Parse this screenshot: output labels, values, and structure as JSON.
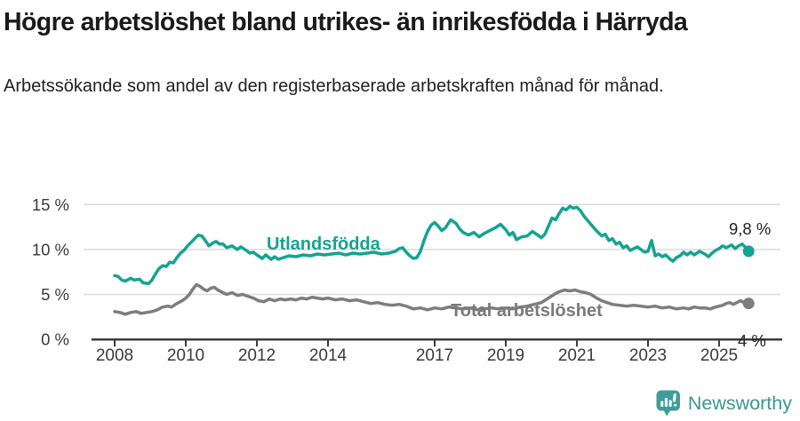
{
  "header": {
    "title": "Högre arbetslöshet bland utrikes- än inrikesfödda i Härryda",
    "subtitle": "Arbetssökande som andel av den registerbaserade arbetskraften månad för månad."
  },
  "footer": {
    "brand": "Newsworthy"
  },
  "chart_data": {
    "type": "line",
    "title": "Högre arbetslöshet bland utrikes- än inrikesfödda i Härryda",
    "subtitle": "Arbetssökande som andel av den registerbaserade arbetskraften månad för månad.",
    "xlabel": "",
    "ylabel": "",
    "grid": "horizontal",
    "legend_position": "inline-labels",
    "ylim": [
      0,
      16
    ],
    "xlim": [
      2007.5,
      2026.5
    ],
    "y_tick_values": [
      0,
      5,
      10,
      15
    ],
    "y_tick_labels": [
      "0 %",
      "5 %",
      "10 %",
      "15 %"
    ],
    "x_tick_values": [
      2008,
      2010,
      2012,
      2014,
      2017,
      2019,
      2021,
      2023,
      2025
    ],
    "x_tick_labels": [
      "2008",
      "2010",
      "2012",
      "2014",
      "2017",
      "2019",
      "2021",
      "2023",
      "2025"
    ],
    "colors": {
      "utlandsfodda": "#14a392",
      "total": "#7d7d7d",
      "grid": "#dcdcdc",
      "axis": "#3d3d3d"
    },
    "series": [
      {
        "name": "Utlandsfödda",
        "color": "#14a392",
        "end_label": "9,8 %",
        "end_value": 9.8,
        "points": [
          [
            2008.0,
            7.1
          ],
          [
            2008.1,
            7.0
          ],
          [
            2008.2,
            6.6
          ],
          [
            2008.3,
            6.5
          ],
          [
            2008.45,
            6.8
          ],
          [
            2008.55,
            6.6
          ],
          [
            2008.7,
            6.7
          ],
          [
            2008.8,
            6.3
          ],
          [
            2008.95,
            6.2
          ],
          [
            2009.05,
            6.6
          ],
          [
            2009.15,
            7.3
          ],
          [
            2009.25,
            7.9
          ],
          [
            2009.35,
            8.2
          ],
          [
            2009.45,
            8.1
          ],
          [
            2009.55,
            8.6
          ],
          [
            2009.65,
            8.5
          ],
          [
            2009.75,
            9.1
          ],
          [
            2009.85,
            9.6
          ],
          [
            2009.95,
            9.9
          ],
          [
            2010.05,
            10.4
          ],
          [
            2010.15,
            10.8
          ],
          [
            2010.25,
            11.2
          ],
          [
            2010.35,
            11.6
          ],
          [
            2010.45,
            11.5
          ],
          [
            2010.55,
            11.0
          ],
          [
            2010.65,
            10.4
          ],
          [
            2010.75,
            10.7
          ],
          [
            2010.85,
            10.9
          ],
          [
            2010.95,
            10.6
          ],
          [
            2011.05,
            10.6
          ],
          [
            2011.15,
            10.2
          ],
          [
            2011.3,
            10.4
          ],
          [
            2011.45,
            10.0
          ],
          [
            2011.55,
            10.3
          ],
          [
            2011.7,
            9.9
          ],
          [
            2011.8,
            9.6
          ],
          [
            2011.9,
            9.7
          ],
          [
            2012.0,
            9.4
          ],
          [
            2012.15,
            9.0
          ],
          [
            2012.25,
            9.4
          ],
          [
            2012.4,
            8.9
          ],
          [
            2012.5,
            9.2
          ],
          [
            2012.6,
            8.9
          ],
          [
            2012.75,
            9.1
          ],
          [
            2012.9,
            9.3
          ],
          [
            2013.1,
            9.2
          ],
          [
            2013.3,
            9.4
          ],
          [
            2013.5,
            9.3
          ],
          [
            2013.7,
            9.5
          ],
          [
            2013.9,
            9.4
          ],
          [
            2014.1,
            9.5
          ],
          [
            2014.3,
            9.6
          ],
          [
            2014.5,
            9.4
          ],
          [
            2014.7,
            9.6
          ],
          [
            2014.9,
            9.5
          ],
          [
            2015.1,
            9.6
          ],
          [
            2015.3,
            9.7
          ],
          [
            2015.5,
            9.5
          ],
          [
            2015.7,
            9.6
          ],
          [
            2015.9,
            9.8
          ],
          [
            2016.0,
            10.1
          ],
          [
            2016.1,
            10.2
          ],
          [
            2016.2,
            9.7
          ],
          [
            2016.3,
            9.3
          ],
          [
            2016.4,
            9.0
          ],
          [
            2016.5,
            9.1
          ],
          [
            2016.6,
            9.8
          ],
          [
            2016.7,
            11.0
          ],
          [
            2016.8,
            12.0
          ],
          [
            2016.9,
            12.7
          ],
          [
            2017.0,
            13.0
          ],
          [
            2017.1,
            12.6
          ],
          [
            2017.2,
            12.1
          ],
          [
            2017.3,
            12.4
          ],
          [
            2017.45,
            13.3
          ],
          [
            2017.6,
            12.9
          ],
          [
            2017.7,
            12.3
          ],
          [
            2017.8,
            11.9
          ],
          [
            2017.95,
            11.6
          ],
          [
            2018.1,
            11.9
          ],
          [
            2018.25,
            11.4
          ],
          [
            2018.4,
            11.8
          ],
          [
            2018.55,
            12.1
          ],
          [
            2018.7,
            12.4
          ],
          [
            2018.85,
            12.8
          ],
          [
            2019.0,
            12.2
          ],
          [
            2019.1,
            11.6
          ],
          [
            2019.2,
            11.9
          ],
          [
            2019.3,
            11.1
          ],
          [
            2019.45,
            11.4
          ],
          [
            2019.6,
            11.5
          ],
          [
            2019.75,
            12.0
          ],
          [
            2019.9,
            11.6
          ],
          [
            2020.0,
            11.3
          ],
          [
            2020.1,
            11.7
          ],
          [
            2020.2,
            12.6
          ],
          [
            2020.3,
            13.5
          ],
          [
            2020.4,
            13.3
          ],
          [
            2020.5,
            14.0
          ],
          [
            2020.6,
            14.6
          ],
          [
            2020.7,
            14.4
          ],
          [
            2020.8,
            14.8
          ],
          [
            2020.9,
            14.6
          ],
          [
            2021.0,
            14.7
          ],
          [
            2021.1,
            14.3
          ],
          [
            2021.2,
            13.7
          ],
          [
            2021.35,
            13.0
          ],
          [
            2021.5,
            12.3
          ],
          [
            2021.6,
            11.9
          ],
          [
            2021.7,
            11.5
          ],
          [
            2021.8,
            11.7
          ],
          [
            2021.9,
            11.0
          ],
          [
            2022.0,
            11.2
          ],
          [
            2022.1,
            10.6
          ],
          [
            2022.2,
            10.8
          ],
          [
            2022.3,
            10.2
          ],
          [
            2022.4,
            10.4
          ],
          [
            2022.5,
            9.9
          ],
          [
            2022.6,
            10.1
          ],
          [
            2022.7,
            10.3
          ],
          [
            2022.8,
            10.0
          ],
          [
            2022.9,
            9.7
          ],
          [
            2023.0,
            9.8
          ],
          [
            2023.1,
            11.0
          ],
          [
            2023.2,
            9.3
          ],
          [
            2023.3,
            9.5
          ],
          [
            2023.4,
            9.2
          ],
          [
            2023.5,
            9.4
          ],
          [
            2023.6,
            9.0
          ],
          [
            2023.7,
            8.7
          ],
          [
            2023.8,
            9.1
          ],
          [
            2023.9,
            9.3
          ],
          [
            2024.0,
            9.7
          ],
          [
            2024.1,
            9.4
          ],
          [
            2024.2,
            9.7
          ],
          [
            2024.3,
            9.4
          ],
          [
            2024.45,
            9.8
          ],
          [
            2024.6,
            9.5
          ],
          [
            2024.7,
            9.2
          ],
          [
            2024.8,
            9.6
          ],
          [
            2024.9,
            9.9
          ],
          [
            2025.0,
            10.1
          ],
          [
            2025.1,
            10.4
          ],
          [
            2025.2,
            10.2
          ],
          [
            2025.35,
            10.5
          ],
          [
            2025.45,
            10.1
          ],
          [
            2025.55,
            10.4
          ],
          [
            2025.65,
            10.6
          ],
          [
            2025.75,
            10.2
          ],
          [
            2025.83,
            9.8
          ]
        ]
      },
      {
        "name": "Total arbetslöshet",
        "color": "#7d7d7d",
        "end_label": "4 %",
        "end_value": 4.0,
        "points": [
          [
            2008.0,
            3.1
          ],
          [
            2008.15,
            3.0
          ],
          [
            2008.3,
            2.8
          ],
          [
            2008.45,
            3.0
          ],
          [
            2008.6,
            3.1
          ],
          [
            2008.75,
            2.9
          ],
          [
            2008.9,
            3.0
          ],
          [
            2009.05,
            3.1
          ],
          [
            2009.2,
            3.3
          ],
          [
            2009.35,
            3.6
          ],
          [
            2009.5,
            3.7
          ],
          [
            2009.6,
            3.6
          ],
          [
            2009.75,
            4.0
          ],
          [
            2009.9,
            4.3
          ],
          [
            2010.0,
            4.6
          ],
          [
            2010.1,
            5.0
          ],
          [
            2010.2,
            5.6
          ],
          [
            2010.3,
            6.1
          ],
          [
            2010.4,
            5.9
          ],
          [
            2010.5,
            5.6
          ],
          [
            2010.6,
            5.4
          ],
          [
            2010.7,
            5.7
          ],
          [
            2010.8,
            5.8
          ],
          [
            2010.9,
            5.5
          ],
          [
            2011.0,
            5.3
          ],
          [
            2011.15,
            5.0
          ],
          [
            2011.3,
            5.2
          ],
          [
            2011.45,
            4.9
          ],
          [
            2011.6,
            5.0
          ],
          [
            2011.75,
            4.8
          ],
          [
            2011.9,
            4.6
          ],
          [
            2012.05,
            4.3
          ],
          [
            2012.2,
            4.2
          ],
          [
            2012.35,
            4.5
          ],
          [
            2012.5,
            4.3
          ],
          [
            2012.65,
            4.5
          ],
          [
            2012.8,
            4.4
          ],
          [
            2012.95,
            4.5
          ],
          [
            2013.1,
            4.4
          ],
          [
            2013.25,
            4.6
          ],
          [
            2013.4,
            4.5
          ],
          [
            2013.55,
            4.7
          ],
          [
            2013.7,
            4.6
          ],
          [
            2013.85,
            4.5
          ],
          [
            2014.0,
            4.6
          ],
          [
            2014.2,
            4.4
          ],
          [
            2014.4,
            4.5
          ],
          [
            2014.6,
            4.3
          ],
          [
            2014.8,
            4.4
          ],
          [
            2015.0,
            4.2
          ],
          [
            2015.2,
            4.0
          ],
          [
            2015.4,
            4.1
          ],
          [
            2015.6,
            3.9
          ],
          [
            2015.8,
            3.8
          ],
          [
            2016.0,
            3.9
          ],
          [
            2016.2,
            3.7
          ],
          [
            2016.4,
            3.4
          ],
          [
            2016.6,
            3.5
          ],
          [
            2016.8,
            3.3
          ],
          [
            2017.0,
            3.5
          ],
          [
            2017.2,
            3.4
          ],
          [
            2017.4,
            3.6
          ],
          [
            2017.6,
            3.5
          ],
          [
            2017.8,
            3.4
          ],
          [
            2018.0,
            3.5
          ],
          [
            2018.2,
            3.3
          ],
          [
            2018.4,
            3.4
          ],
          [
            2018.6,
            3.5
          ],
          [
            2018.8,
            3.4
          ],
          [
            2019.0,
            3.5
          ],
          [
            2019.2,
            3.4
          ],
          [
            2019.4,
            3.6
          ],
          [
            2019.6,
            3.7
          ],
          [
            2019.8,
            3.9
          ],
          [
            2020.0,
            4.1
          ],
          [
            2020.2,
            4.6
          ],
          [
            2020.4,
            5.1
          ],
          [
            2020.5,
            5.3
          ],
          [
            2020.65,
            5.5
          ],
          [
            2020.8,
            5.4
          ],
          [
            2020.95,
            5.5
          ],
          [
            2021.1,
            5.3
          ],
          [
            2021.25,
            5.2
          ],
          [
            2021.4,
            5.0
          ],
          [
            2021.55,
            4.6
          ],
          [
            2021.7,
            4.3
          ],
          [
            2021.85,
            4.1
          ],
          [
            2022.0,
            3.9
          ],
          [
            2022.2,
            3.8
          ],
          [
            2022.4,
            3.7
          ],
          [
            2022.6,
            3.8
          ],
          [
            2022.8,
            3.7
          ],
          [
            2023.0,
            3.6
          ],
          [
            2023.2,
            3.7
          ],
          [
            2023.4,
            3.5
          ],
          [
            2023.6,
            3.6
          ],
          [
            2023.8,
            3.4
          ],
          [
            2024.0,
            3.5
          ],
          [
            2024.15,
            3.4
          ],
          [
            2024.3,
            3.6
          ],
          [
            2024.45,
            3.5
          ],
          [
            2024.6,
            3.5
          ],
          [
            2024.75,
            3.4
          ],
          [
            2024.9,
            3.6
          ],
          [
            2025.0,
            3.7
          ],
          [
            2025.1,
            3.8
          ],
          [
            2025.2,
            4.0
          ],
          [
            2025.3,
            4.1
          ],
          [
            2025.4,
            3.9
          ],
          [
            2025.5,
            4.1
          ],
          [
            2025.6,
            4.3
          ],
          [
            2025.7,
            4.1
          ],
          [
            2025.83,
            4.0
          ]
        ]
      }
    ]
  }
}
